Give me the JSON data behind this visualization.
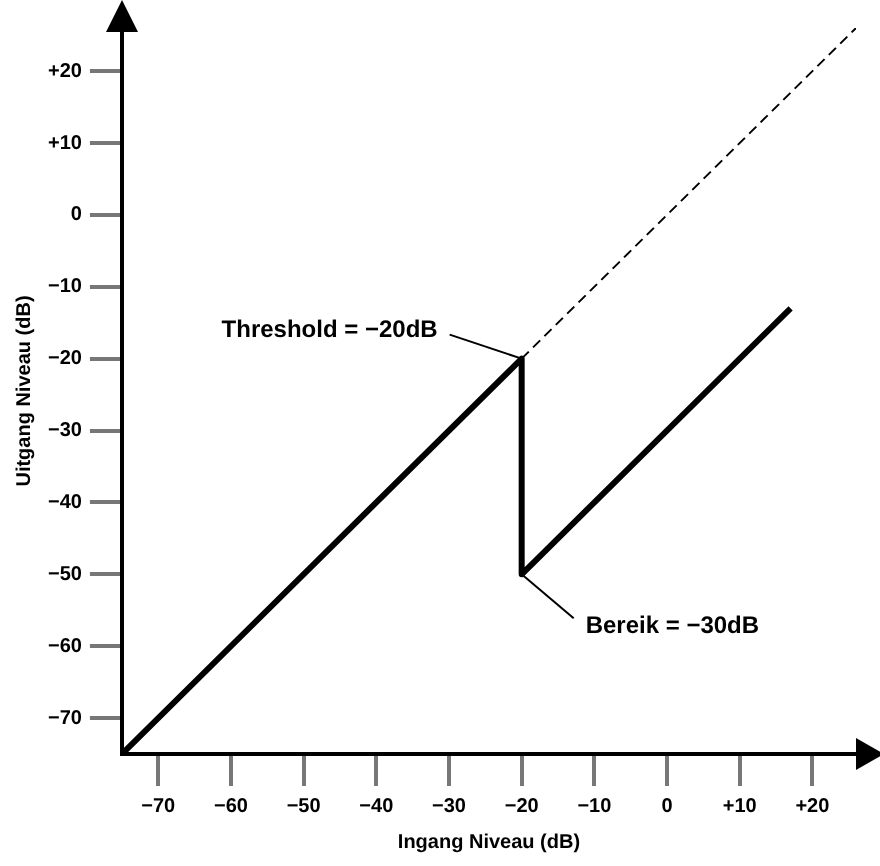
{
  "chart_data": {
    "type": "line",
    "xlabel": "Ingang Niveau (dB)",
    "ylabel": "Uitgang Niveau (dB)",
    "xlim": [
      -75,
      26
    ],
    "ylim": [
      -75,
      26
    ],
    "xticks": [
      {
        "value": -70,
        "label": "−70"
      },
      {
        "value": -60,
        "label": "−60"
      },
      {
        "value": -50,
        "label": "−50"
      },
      {
        "value": -40,
        "label": "−40"
      },
      {
        "value": -30,
        "label": "−30"
      },
      {
        "value": -20,
        "label": "−20"
      },
      {
        "value": -10,
        "label": "−10"
      },
      0,
      {
        "value": 10,
        "label": "+10"
      },
      {
        "value": 20,
        "label": "+20"
      }
    ],
    "yticks": [
      {
        "value": -70,
        "label": "−70"
      },
      {
        "value": -60,
        "label": "−60"
      },
      {
        "value": -50,
        "label": "−50"
      },
      {
        "value": -40,
        "label": "−40"
      },
      {
        "value": -30,
        "label": "−30"
      },
      {
        "value": -20,
        "label": "−20"
      },
      {
        "value": -10,
        "label": "−10"
      },
      0,
      {
        "value": 10,
        "label": "+10"
      },
      {
        "value": 20,
        "label": "+20"
      }
    ],
    "series": [
      {
        "color": "#000000",
        "line_style": "solid",
        "x": [
          -75,
          -20,
          -20,
          17
        ],
        "values": [
          -75,
          -20,
          -50,
          -13
        ]
      },
      {
        "color": "#000000",
        "line_style": "dashed",
        "x": [
          -20,
          26
        ],
        "values": [
          -20,
          26
        ]
      }
    ],
    "annotations": [
      {
        "text": "Threshold = −20dB",
        "x": -20,
        "y": -20
      },
      {
        "text": "Bereik = −30dB",
        "x": -20,
        "y": -50
      }
    ],
    "grid": false,
    "legend": false,
    "marker": "none"
  }
}
